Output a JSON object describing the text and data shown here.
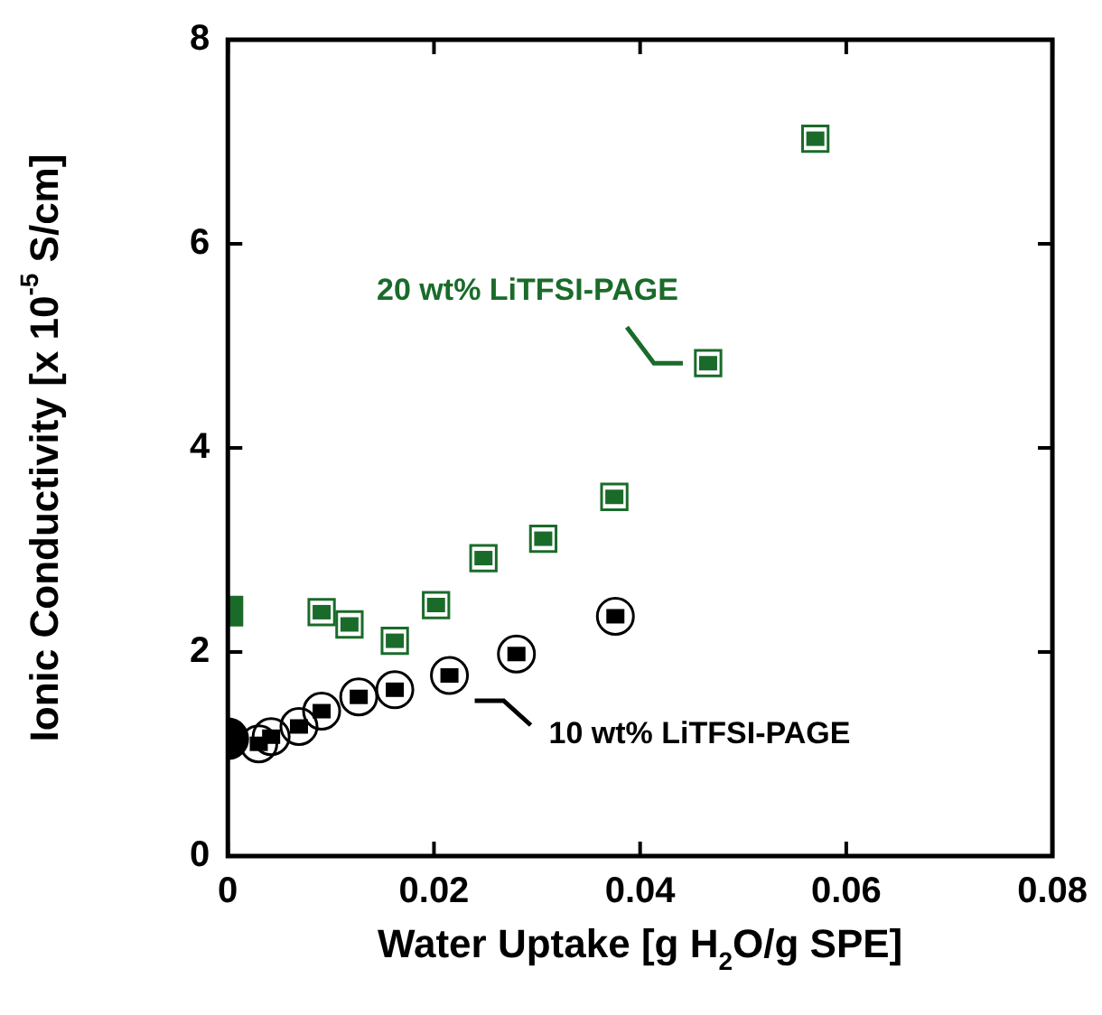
{
  "chart_data": {
    "type": "scatter",
    "xlabel": "Water Uptake [g H$_{2}$O/g SPE]",
    "ylabel": "Ionic Conductivity [x 10$^{-5}$ S/cm]",
    "xlim": [
      0,
      0.08
    ],
    "xticks": [
      0,
      0.02,
      0.04,
      0.06,
      0.08
    ],
    "ylim": [
      0,
      8
    ],
    "yticks": [
      0,
      2,
      4,
      6,
      8
    ],
    "grid": false,
    "legend": "right",
    "series": [
      {
        "name": "20 wt% LiTFSI-PAGE",
        "color": "#1a6b2a",
        "marker": "square",
        "x": [
          0.0091,
          0.0118,
          0.0162,
          0.0202,
          0.0248,
          0.0306,
          0.0375,
          0.0466,
          0.057
        ],
        "values": [
          2.39,
          2.27,
          2.11,
          2.46,
          2.92,
          3.11,
          3.52,
          4.83,
          7.03
        ]
      },
      {
        "name": "10 wt% LiTFSI-PAGE",
        "color": "#000000",
        "marker": "circle",
        "x": [
          0.003,
          0.0042,
          0.0069,
          0.0091,
          0.0127,
          0.0162,
          0.0215,
          0.028,
          0.0376
        ],
        "values": [
          1.1,
          1.17,
          1.27,
          1.42,
          1.56,
          1.63,
          1.77,
          1.98,
          2.35
        ]
      },
      {
        "color": "#1a6b2a",
        "marker": "square",
        "x": [
          0
        ],
        "values": [
          2.4
        ]
      },
      {
        "color": "#000000",
        "marker": "circle",
        "x": [
          0
        ],
        "values": [
          1.15
        ]
      }
    ]
  }
}
